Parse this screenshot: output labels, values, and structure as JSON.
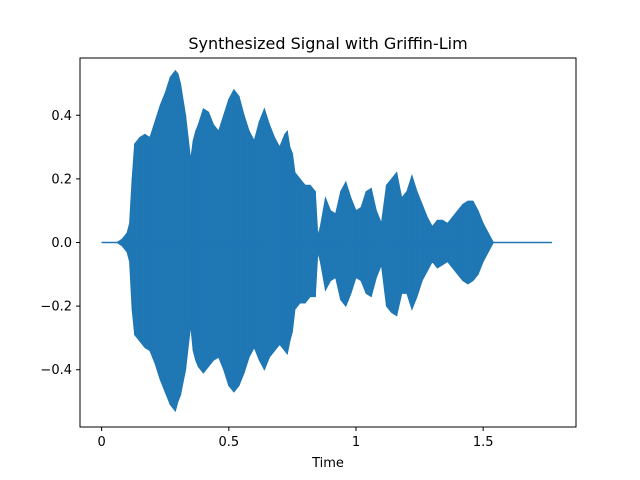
{
  "chart_data": {
    "type": "area",
    "title": "Synthesized Signal with Griffin-Lim",
    "xlabel": "Time",
    "ylabel": "",
    "xlim": [
      -0.085,
      1.865
    ],
    "ylim": [
      -0.58,
      0.58
    ],
    "x_ticks": [
      0,
      0.5,
      1,
      1.5
    ],
    "x_tick_labels": [
      "0",
      "0.5",
      "1",
      "1.5"
    ],
    "y_ticks": [
      -0.4,
      -0.2,
      0.0,
      0.2,
      0.4
    ],
    "y_tick_labels": [
      "−0.4",
      "−0.2",
      "0.0",
      "0.2",
      "0.4"
    ],
    "grid": false,
    "series": [
      {
        "color": "#1f77b4",
        "x": [
          0.0,
          0.06,
          0.08,
          0.09,
          0.1,
          0.11,
          0.12,
          0.13,
          0.15,
          0.17,
          0.19,
          0.21,
          0.23,
          0.25,
          0.27,
          0.29,
          0.3,
          0.31,
          0.33,
          0.35,
          0.36,
          0.37,
          0.38,
          0.4,
          0.42,
          0.44,
          0.46,
          0.48,
          0.5,
          0.52,
          0.54,
          0.56,
          0.58,
          0.6,
          0.62,
          0.64,
          0.66,
          0.68,
          0.7,
          0.72,
          0.73,
          0.74,
          0.75,
          0.76,
          0.78,
          0.8,
          0.82,
          0.84,
          0.85,
          0.86,
          0.88,
          0.9,
          0.92,
          0.94,
          0.96,
          0.98,
          1.0,
          1.02,
          1.04,
          1.06,
          1.08,
          1.1,
          1.12,
          1.14,
          1.16,
          1.18,
          1.2,
          1.22,
          1.24,
          1.26,
          1.28,
          1.3,
          1.32,
          1.34,
          1.36,
          1.38,
          1.4,
          1.42,
          1.44,
          1.46,
          1.48,
          1.5,
          1.52,
          1.54,
          1.56,
          1.6,
          1.65,
          1.7,
          1.77
        ],
        "upper": [
          0.0,
          0.0,
          0.01,
          0.02,
          0.03,
          0.06,
          0.2,
          0.31,
          0.33,
          0.34,
          0.33,
          0.38,
          0.43,
          0.47,
          0.52,
          0.54,
          0.53,
          0.5,
          0.4,
          0.26,
          0.32,
          0.35,
          0.37,
          0.42,
          0.41,
          0.37,
          0.35,
          0.4,
          0.45,
          0.48,
          0.46,
          0.4,
          0.35,
          0.32,
          0.38,
          0.42,
          0.37,
          0.33,
          0.3,
          0.34,
          0.35,
          0.3,
          0.28,
          0.22,
          0.2,
          0.18,
          0.18,
          0.16,
          0.02,
          0.05,
          0.14,
          0.1,
          0.09,
          0.16,
          0.19,
          0.14,
          0.1,
          0.11,
          0.16,
          0.17,
          0.1,
          0.06,
          0.18,
          0.2,
          0.22,
          0.14,
          0.16,
          0.21,
          0.16,
          0.12,
          0.08,
          0.05,
          0.07,
          0.07,
          0.06,
          0.08,
          0.1,
          0.12,
          0.13,
          0.13,
          0.1,
          0.06,
          0.03,
          0.0,
          0.0,
          0.0,
          0.0,
          0.0,
          0.0
        ],
        "lower": [
          0.0,
          0.0,
          -0.01,
          -0.02,
          -0.03,
          -0.06,
          -0.21,
          -0.29,
          -0.31,
          -0.33,
          -0.34,
          -0.38,
          -0.43,
          -0.47,
          -0.51,
          -0.53,
          -0.5,
          -0.48,
          -0.4,
          -0.26,
          -0.34,
          -0.37,
          -0.39,
          -0.41,
          -0.39,
          -0.37,
          -0.36,
          -0.4,
          -0.45,
          -0.47,
          -0.45,
          -0.41,
          -0.36,
          -0.33,
          -0.37,
          -0.4,
          -0.36,
          -0.34,
          -0.32,
          -0.34,
          -0.35,
          -0.31,
          -0.28,
          -0.21,
          -0.19,
          -0.19,
          -0.17,
          -0.17,
          -0.03,
          -0.06,
          -0.15,
          -0.12,
          -0.11,
          -0.18,
          -0.2,
          -0.16,
          -0.11,
          -0.12,
          -0.16,
          -0.17,
          -0.11,
          -0.07,
          -0.2,
          -0.22,
          -0.23,
          -0.16,
          -0.16,
          -0.21,
          -0.17,
          -0.12,
          -0.09,
          -0.06,
          -0.08,
          -0.07,
          -0.06,
          -0.08,
          -0.1,
          -0.12,
          -0.13,
          -0.12,
          -0.1,
          -0.06,
          -0.03,
          0.0,
          0.0,
          0.0,
          0.0,
          0.0,
          0.0
        ]
      }
    ]
  }
}
